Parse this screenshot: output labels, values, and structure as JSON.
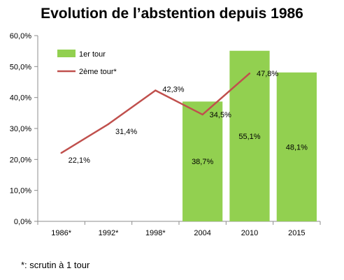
{
  "title": "Evolution de l’abstention depuis 1986",
  "footnote": "*: scrutin à 1 tour",
  "chart_data": {
    "type": "bar",
    "title": "Evolution de l’abstention depuis 1986",
    "categories": [
      "1986*",
      "1992*",
      "1998*",
      "2004",
      "2010",
      "2015"
    ],
    "ylim": [
      0,
      60
    ],
    "yticks": [
      "0,0%",
      "10,0%",
      "20,0%",
      "30,0%",
      "40,0%",
      "50,0%",
      "60,0%"
    ],
    "legend_position": "top-left",
    "grid": false,
    "series": [
      {
        "name": "1er tour",
        "type": "bar",
        "color": "#92d050",
        "values": [
          null,
          null,
          null,
          38.7,
          55.1,
          48.1
        ],
        "labels": [
          "",
          "",
          "",
          "38,7%",
          "55,1%",
          "48,1%"
        ]
      },
      {
        "name": "2ème tour*",
        "type": "line",
        "color": "#c0504d",
        "values": [
          22.1,
          31.4,
          42.3,
          34.5,
          47.8,
          null
        ],
        "labels": [
          "22,1%",
          "31,4%",
          "42,3%",
          "34,5%",
          "47,8%",
          ""
        ]
      }
    ]
  }
}
